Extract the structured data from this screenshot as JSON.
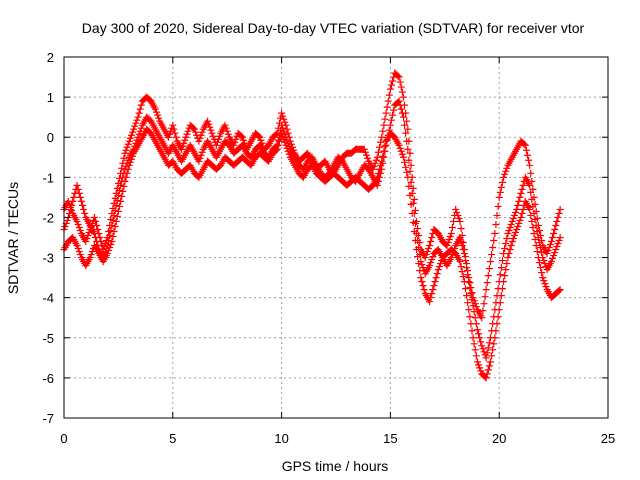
{
  "chart_data": {
    "type": "scatter",
    "title": "Day 300 of 2020, Sidereal Day-to-day VTEC variation (SDTVAR) for receiver vtor",
    "xlabel": "GPS time / hours",
    "ylabel": "SDTVAR / TECUs",
    "xlim": [
      0,
      25
    ],
    "ylim": [
      -7,
      2
    ],
    "xticks": [
      0,
      5,
      10,
      15,
      20,
      25
    ],
    "yticks": [
      -7,
      -6,
      -5,
      -4,
      -3,
      -2,
      -1,
      0,
      1,
      2
    ],
    "grid": true,
    "marker": "plus",
    "color": "#ff0000",
    "series": [
      {
        "x": [
          0.0,
          0.2,
          0.4,
          0.6,
          0.8,
          1.0,
          1.2,
          1.4,
          1.6,
          1.8,
          2.0,
          2.2,
          2.4,
          2.6,
          2.8,
          3.0,
          3.2,
          3.4,
          3.6,
          3.8,
          4.0,
          4.2,
          4.4,
          4.6,
          4.8,
          5.0,
          5.2,
          5.4,
          5.6,
          5.8,
          6.0,
          6.2,
          6.4,
          6.6,
          6.8,
          7.0,
          7.2,
          7.4,
          7.6,
          7.8,
          8.0,
          8.2,
          8.4,
          8.6,
          8.8,
          9.0,
          9.2,
          9.4,
          9.6,
          9.8,
          10.0,
          10.2,
          10.4,
          10.6,
          10.8,
          11.0,
          11.2,
          11.4,
          11.6,
          11.8,
          12.0,
          12.2,
          12.4,
          12.6,
          12.8,
          13.0,
          13.2,
          13.4,
          13.6,
          13.8,
          14.0,
          14.2,
          14.4,
          14.6,
          14.8,
          15.0,
          15.2,
          15.4,
          15.6,
          15.8,
          16.0,
          16.2,
          16.4,
          16.6,
          16.8,
          17.0,
          17.2,
          17.4,
          17.6,
          17.8,
          18.0,
          18.2,
          18.4,
          18.6,
          18.8,
          19.0,
          19.2,
          19.4,
          19.6,
          19.8,
          20.0,
          20.2,
          20.4,
          20.6,
          20.8,
          21.0,
          21.2,
          21.4,
          21.6,
          21.8,
          22.0,
          22.2,
          22.4,
          22.6,
          22.8
        ],
        "y": [
          -1.8,
          -1.6,
          -1.9,
          -2.1,
          -2.4,
          -2.6,
          -2.3,
          -2.0,
          -2.4,
          -2.8,
          -2.5,
          -1.9,
          -1.4,
          -0.9,
          -0.4,
          -0.1,
          0.2,
          0.5,
          0.9,
          1.0,
          0.9,
          0.7,
          0.4,
          0.2,
          0.0,
          0.3,
          -0.1,
          -0.3,
          0.0,
          0.3,
          0.2,
          -0.1,
          0.2,
          0.4,
          0.1,
          -0.2,
          0.1,
          0.3,
          0.0,
          -0.2,
          0.1,
          0.0,
          -0.3,
          -0.1,
          0.1,
          0.0,
          -0.3,
          -0.2,
          0.0,
          0.1,
          0.6,
          0.3,
          -0.1,
          -0.4,
          -0.6,
          -0.5,
          -0.4,
          -0.6,
          -0.8,
          -0.7,
          -0.6,
          -0.8,
          -0.9,
          -0.7,
          -0.5,
          -0.4,
          -0.4,
          -0.3,
          -0.3,
          -0.3,
          -0.6,
          -0.8,
          -0.5,
          0.0,
          0.6,
          1.2,
          1.6,
          1.5,
          1.0,
          0.2,
          -1.0,
          -2.1,
          -2.8,
          -3.0,
          -2.7,
          -2.3,
          -2.4,
          -2.6,
          -2.7,
          -2.4,
          -1.8,
          -2.1,
          -2.8,
          -3.5,
          -4.0,
          -4.3,
          -4.5,
          -3.8,
          -3.1,
          -2.4,
          -1.5,
          -1.0,
          -0.7,
          -0.5,
          -0.3,
          -0.1,
          -0.2,
          -0.7,
          -1.5,
          -2.2,
          -2.7,
          -2.9,
          -2.6,
          -2.2,
          -1.8
        ],
        "count": 115
      },
      {
        "x": [
          0.0,
          0.2,
          0.4,
          0.6,
          0.8,
          1.0,
          1.2,
          1.4,
          1.6,
          1.8,
          2.0,
          2.2,
          2.4,
          2.6,
          2.8,
          3.0,
          3.2,
          3.4,
          3.6,
          3.8,
          4.0,
          4.2,
          4.4,
          4.6,
          4.8,
          5.0,
          5.2,
          5.4,
          5.6,
          5.8,
          6.0,
          6.2,
          6.4,
          6.6,
          6.8,
          7.0,
          7.2,
          7.4,
          7.6,
          7.8,
          8.0,
          8.2,
          8.4,
          8.6,
          8.8,
          9.0,
          9.2,
          9.4,
          9.6,
          9.8,
          10.0,
          10.2,
          10.4,
          10.6,
          10.8,
          11.0,
          11.2,
          11.4,
          11.6,
          11.8,
          12.0,
          12.2,
          12.4,
          12.6,
          12.8,
          13.0,
          13.2,
          13.4,
          13.6,
          13.8,
          14.0,
          14.2,
          14.4,
          14.6,
          14.8,
          15.0,
          15.2,
          15.4,
          15.6,
          15.8,
          16.0,
          16.2,
          16.4,
          16.6,
          16.8,
          17.0,
          17.2,
          17.4,
          17.6,
          17.8,
          18.0,
          18.2,
          18.4,
          18.6,
          18.8,
          19.0,
          19.2,
          19.4,
          19.6,
          19.8,
          20.0,
          20.2,
          20.4,
          20.6,
          20.8,
          21.0,
          21.2,
          21.4,
          21.6,
          21.8,
          22.0,
          22.2,
          22.4,
          22.6,
          22.8
        ],
        "y": [
          -2.3,
          -2.0,
          -1.6,
          -1.2,
          -1.6,
          -2.0,
          -2.2,
          -2.4,
          -2.8,
          -3.0,
          -2.7,
          -2.2,
          -1.7,
          -1.2,
          -0.8,
          -0.5,
          -0.3,
          0.0,
          0.3,
          0.5,
          0.4,
          0.2,
          0.0,
          -0.2,
          -0.4,
          -0.2,
          -0.4,
          -0.6,
          -0.4,
          -0.2,
          -0.4,
          -0.6,
          -0.3,
          -0.1,
          -0.3,
          -0.5,
          -0.3,
          -0.1,
          -0.2,
          -0.4,
          -0.3,
          -0.2,
          -0.4,
          -0.5,
          -0.3,
          -0.2,
          -0.4,
          -0.5,
          -0.3,
          -0.2,
          0.3,
          0.0,
          -0.3,
          -0.5,
          -0.7,
          -0.8,
          -0.6,
          -0.5,
          -0.7,
          -0.9,
          -1.0,
          -0.9,
          -0.7,
          -0.5,
          -0.6,
          -0.8,
          -1.0,
          -1.1,
          -0.9,
          -0.7,
          -0.8,
          -1.0,
          -1.2,
          -0.8,
          -0.2,
          0.3,
          0.8,
          0.9,
          0.5,
          -0.3,
          -1.4,
          -2.4,
          -3.1,
          -3.4,
          -3.2,
          -2.9,
          -2.8,
          -3.0,
          -3.2,
          -3.0,
          -2.7,
          -2.5,
          -2.9,
          -3.6,
          -4.2,
          -4.8,
          -5.2,
          -5.5,
          -5.0,
          -4.3,
          -3.6,
          -2.9,
          -2.4,
          -2.1,
          -1.8,
          -1.4,
          -1.0,
          -1.2,
          -1.9,
          -2.5,
          -3.0,
          -3.3,
          -3.1,
          -2.8,
          -2.5
        ],
        "count": 115
      },
      {
        "x": [
          0.0,
          0.2,
          0.4,
          0.6,
          0.8,
          1.0,
          1.2,
          1.4,
          1.6,
          1.8,
          2.0,
          2.2,
          2.4,
          2.6,
          2.8,
          3.0,
          3.2,
          3.4,
          3.6,
          3.8,
          4.0,
          4.2,
          4.4,
          4.6,
          4.8,
          5.0,
          5.2,
          5.4,
          5.6,
          5.8,
          6.0,
          6.2,
          6.4,
          6.6,
          6.8,
          7.0,
          7.2,
          7.4,
          7.6,
          7.8,
          8.0,
          8.2,
          8.4,
          8.6,
          8.8,
          9.0,
          9.2,
          9.4,
          9.6,
          9.8,
          10.0,
          10.2,
          10.4,
          10.6,
          10.8,
          11.0,
          11.2,
          11.4,
          11.6,
          11.8,
          12.0,
          12.2,
          12.4,
          12.6,
          12.8,
          13.0,
          13.2,
          13.4,
          13.6,
          13.8,
          14.0,
          14.2,
          14.4,
          14.6,
          14.8,
          15.0,
          15.2,
          15.4,
          15.6,
          15.8,
          16.0,
          16.2,
          16.4,
          16.6,
          16.8,
          17.0,
          17.2,
          17.4,
          17.6,
          17.8,
          18.0,
          18.2,
          18.4,
          18.6,
          18.8,
          19.0,
          19.2,
          19.4,
          19.6,
          19.8,
          20.0,
          20.2,
          20.4,
          20.6,
          20.8,
          21.0,
          21.2,
          21.4,
          21.6,
          21.8,
          22.0,
          22.2,
          22.4,
          22.6,
          22.8
        ],
        "y": [
          -2.8,
          -2.6,
          -2.5,
          -2.7,
          -3.0,
          -3.2,
          -3.0,
          -2.7,
          -2.9,
          -3.1,
          -2.9,
          -2.6,
          -2.1,
          -1.6,
          -1.1,
          -0.7,
          -0.4,
          -0.2,
          0.0,
          0.2,
          0.1,
          -0.1,
          -0.3,
          -0.5,
          -0.7,
          -0.6,
          -0.8,
          -0.9,
          -0.8,
          -0.7,
          -0.9,
          -1.0,
          -0.8,
          -0.6,
          -0.7,
          -0.8,
          -0.7,
          -0.5,
          -0.6,
          -0.7,
          -0.6,
          -0.5,
          -0.6,
          -0.7,
          -0.5,
          -0.4,
          -0.5,
          -0.6,
          -0.4,
          -0.3,
          0.1,
          -0.2,
          -0.5,
          -0.7,
          -0.9,
          -1.0,
          -0.8,
          -0.7,
          -0.9,
          -1.0,
          -1.1,
          -1.0,
          -0.9,
          -1.0,
          -1.1,
          -1.2,
          -1.1,
          -1.0,
          -1.1,
          -1.2,
          -1.3,
          -1.2,
          -1.0,
          -0.6,
          -0.1,
          0.1,
          0.0,
          -0.2,
          -0.5,
          -1.0,
          -1.9,
          -2.8,
          -3.5,
          -3.9,
          -4.1,
          -3.7,
          -3.3,
          -3.0,
          -2.9,
          -2.8,
          -2.9,
          -3.1,
          -3.6,
          -4.3,
          -5.0,
          -5.6,
          -5.9,
          -6.0,
          -5.6,
          -5.0,
          -4.3,
          -3.6,
          -3.0,
          -2.6,
          -2.3,
          -2.0,
          -1.6,
          -1.8,
          -2.4,
          -3.0,
          -3.5,
          -3.8,
          -4.0,
          -3.9,
          -3.8
        ],
        "count": 115
      }
    ]
  }
}
